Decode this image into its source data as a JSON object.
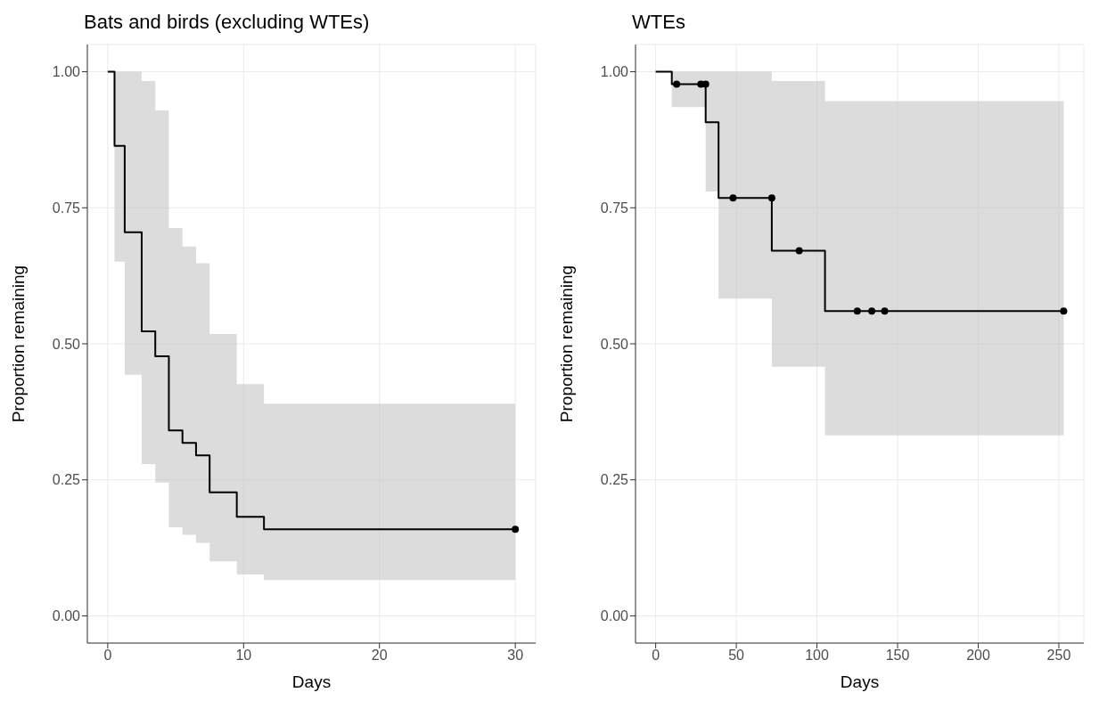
{
  "chart_data": [
    {
      "type": "step",
      "title": "Bats and birds (excluding WTEs)",
      "xlabel": "Days",
      "ylabel": "Proportion remaining",
      "xlim": [
        -1.5,
        31.5
      ],
      "ylim": [
        -0.05,
        1.05
      ],
      "xticks": [
        0,
        10,
        20,
        30
      ],
      "yticks": [
        {
          "value": 0,
          "label": "0.00"
        },
        {
          "value": 0.25,
          "label": "0.25"
        },
        {
          "value": 0.5,
          "label": "0.50"
        },
        {
          "value": 0.75,
          "label": "0.75"
        },
        {
          "value": 1,
          "label": "1.00"
        }
      ],
      "grid": true,
      "legend": false,
      "series": [
        {
          "type": "step",
          "color": "#000000",
          "x": [
            0,
            0.5,
            1.25,
            2.5,
            3.5,
            4.5,
            5.5,
            6.5,
            7.5,
            9.5,
            11.5,
            30
          ],
          "values": [
            1,
            0.864,
            0.705,
            0.523,
            0.477,
            0.341,
            0.318,
            0.295,
            0.227,
            0.182,
            0.159,
            0.159
          ],
          "lower": [
            1,
            0.651,
            0.443,
            0.279,
            0.245,
            0.163,
            0.149,
            0.134,
            0.1,
            0.076,
            0.066,
            0.066
          ],
          "upper": [
            1,
            1,
            1,
            0.983,
            0.929,
            0.713,
            0.679,
            0.648,
            0.518,
            0.426,
            0.39,
            0.39
          ]
        },
        {
          "type": "scatter",
          "color": "#000000",
          "x": [
            30
          ],
          "values": [
            0.159
          ]
        }
      ]
    },
    {
      "type": "step",
      "title": "WTEs",
      "xlabel": "Days",
      "ylabel": "Proportion remaining",
      "xlim": [
        -12.5,
        265.5
      ],
      "ylim": [
        -0.05,
        1.05
      ],
      "xticks": [
        0,
        50,
        100,
        150,
        200,
        250
      ],
      "yticks": [
        {
          "value": 0,
          "label": "0.00"
        },
        {
          "value": 0.25,
          "label": "0.25"
        },
        {
          "value": 0.5,
          "label": "0.50"
        },
        {
          "value": 0.75,
          "label": "0.75"
        },
        {
          "value": 1,
          "label": "1.00"
        }
      ],
      "grid": true,
      "legend": false,
      "series": [
        {
          "type": "step",
          "color": "#000000",
          "x": [
            0,
            10,
            31,
            39,
            72,
            105,
            253
          ],
          "values": [
            1,
            0.977,
            0.907,
            0.768,
            0.671,
            0.56,
            0.56
          ],
          "lower": [
            1,
            0.935,
            0.78,
            0.583,
            0.458,
            0.332,
            0.332
          ],
          "upper": [
            1,
            1,
            1,
            1,
            0.983,
            0.946,
            0.946
          ]
        },
        {
          "type": "scatter",
          "color": "#000000",
          "x": [
            13,
            28,
            31,
            48,
            72,
            89,
            125,
            134,
            142,
            253
          ],
          "values": [
            0.977,
            0.977,
            0.977,
            0.768,
            0.768,
            0.671,
            0.56,
            0.56,
            0.56,
            0.56
          ]
        }
      ]
    }
  ]
}
